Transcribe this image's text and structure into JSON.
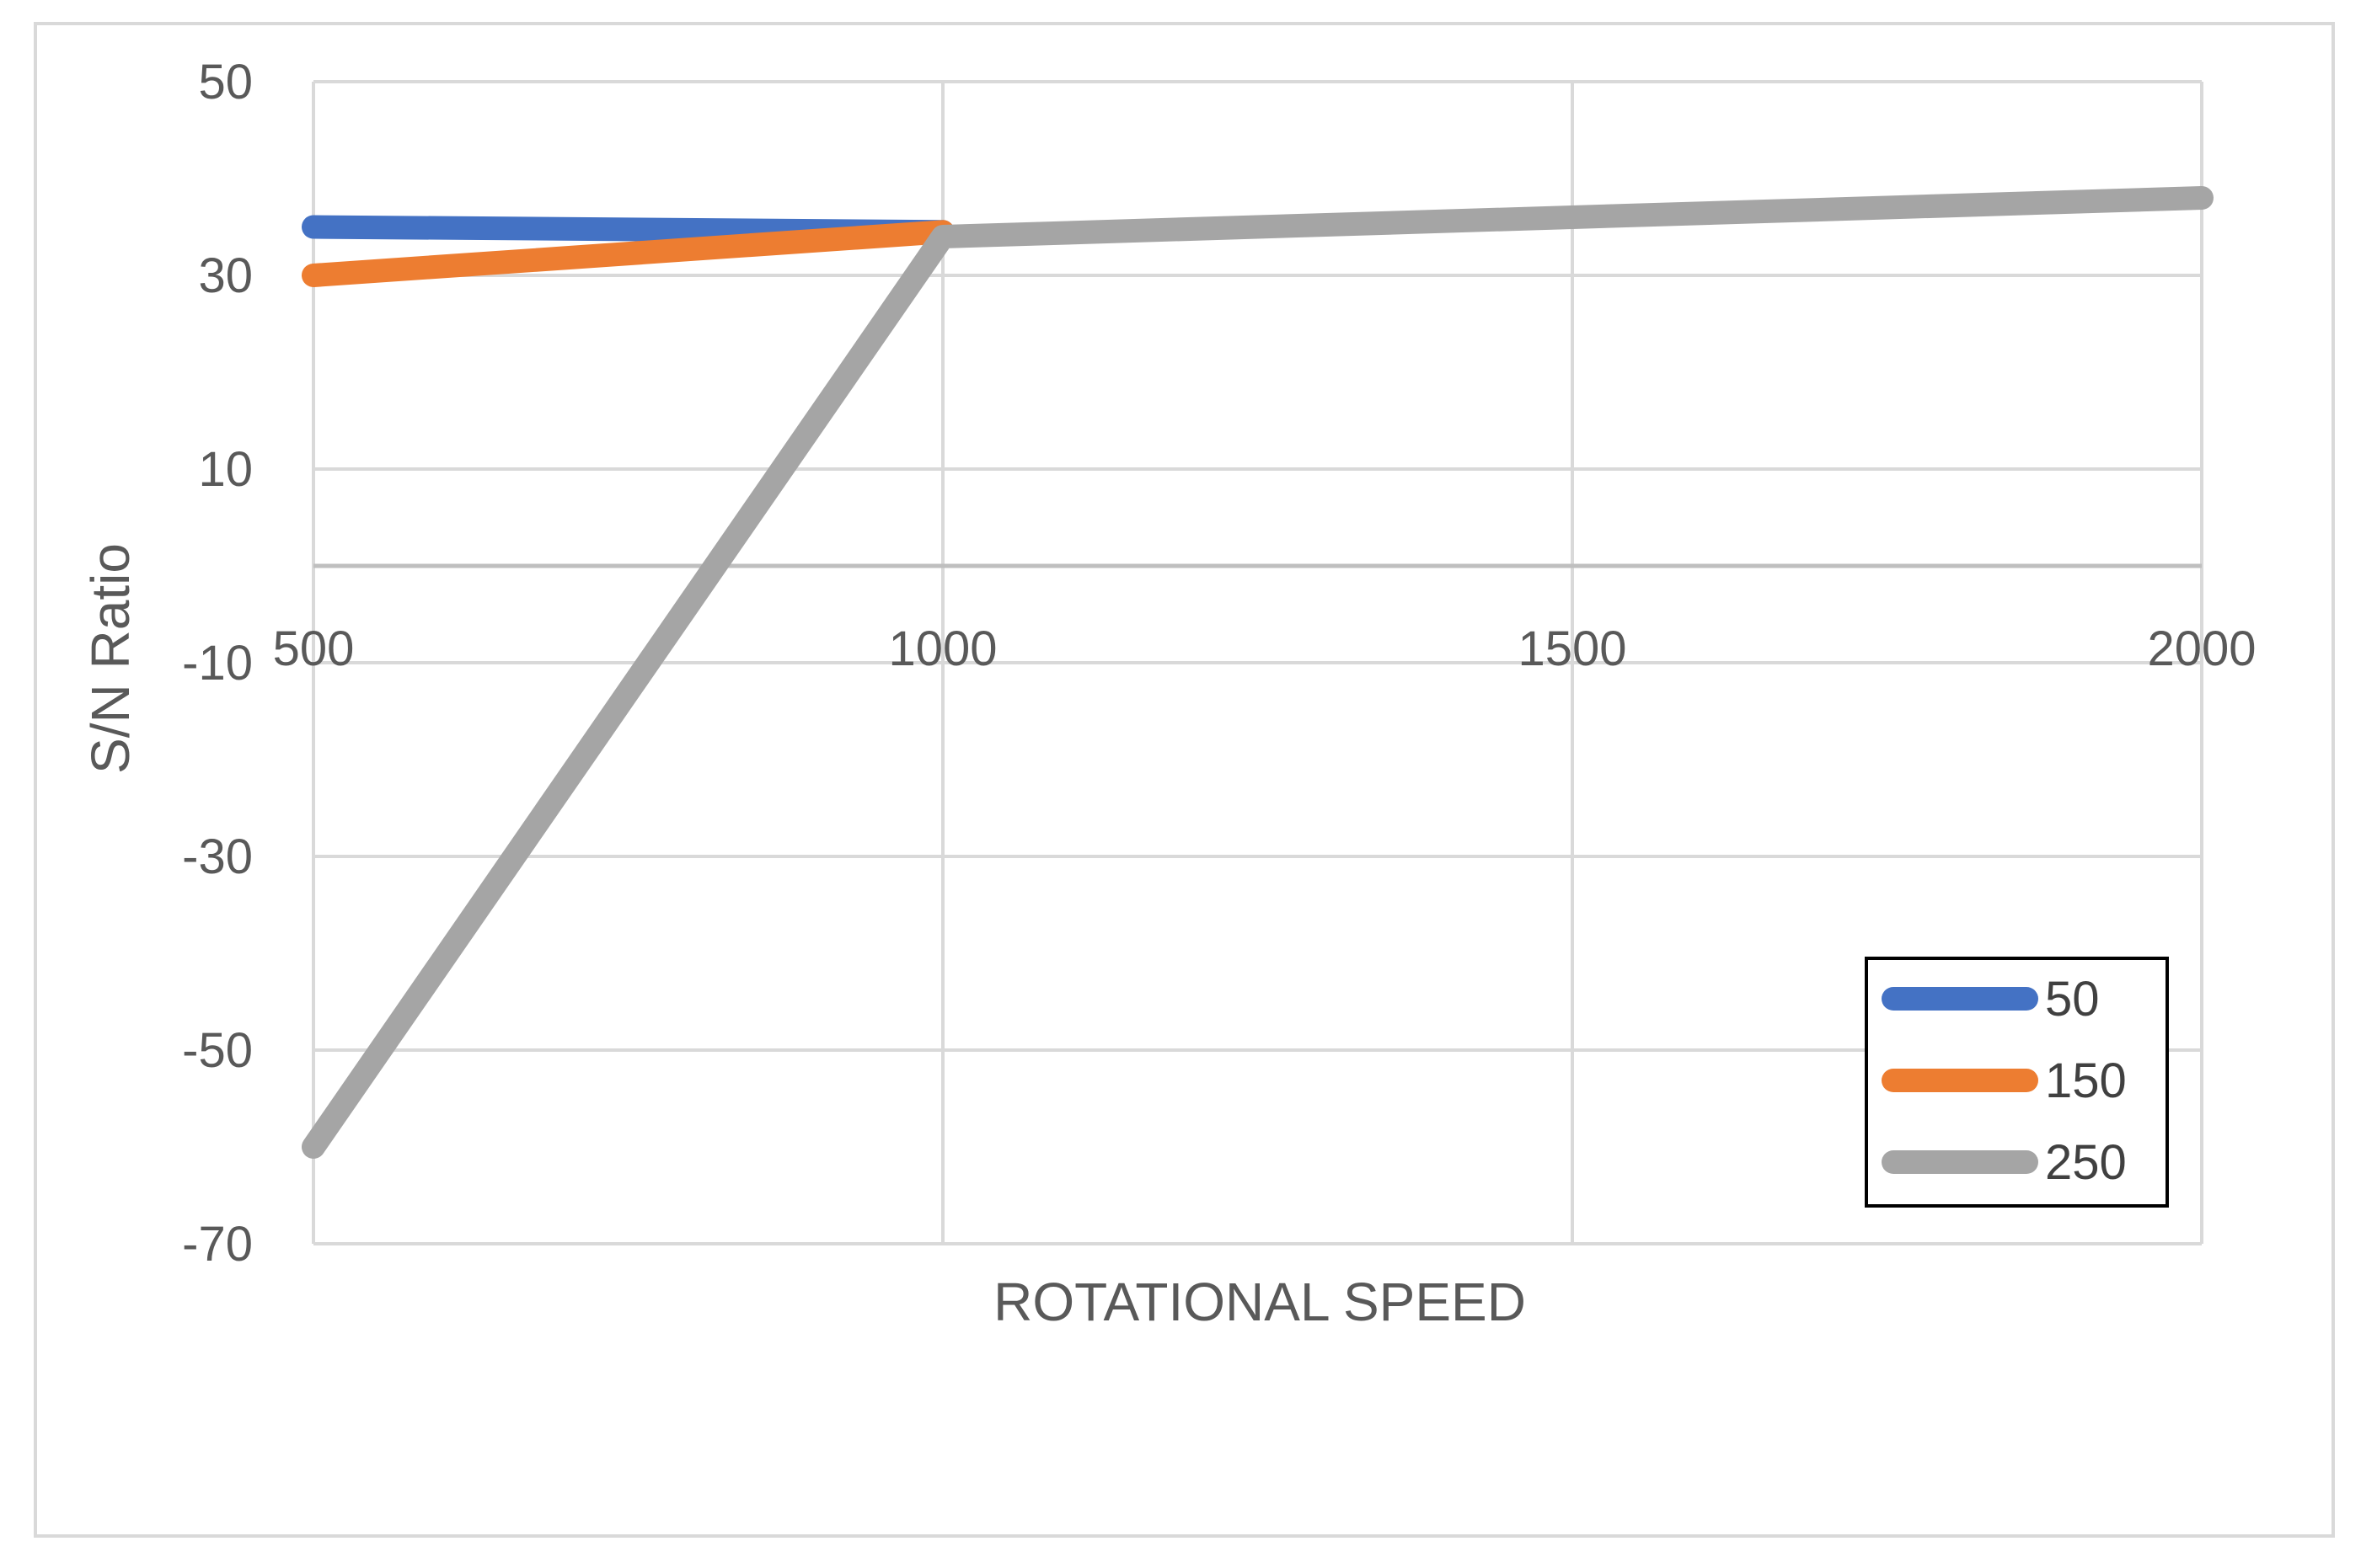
{
  "chart_data": {
    "type": "line",
    "title": "",
    "xlabel": "ROTATIONAL SPEED",
    "ylabel": "S/N Ratio",
    "x": [
      500,
      1000,
      1500,
      2000
    ],
    "xlim": [
      500,
      2000
    ],
    "ylim": [
      -70,
      50
    ],
    "yticks": [
      -70,
      -50,
      -30,
      -10,
      10,
      30,
      50
    ],
    "grid": true,
    "legend_position": "bottom-right",
    "series": [
      {
        "name": "50",
        "color": "#4472c4",
        "values": [
          35,
          34.5,
          null,
          null
        ]
      },
      {
        "name": "150",
        "color": "#ed7d31",
        "values": [
          30,
          34.5,
          null,
          null
        ]
      },
      {
        "name": "250",
        "color": "#a5a5a5",
        "values": [
          -60,
          34,
          36,
          38
        ]
      }
    ]
  }
}
